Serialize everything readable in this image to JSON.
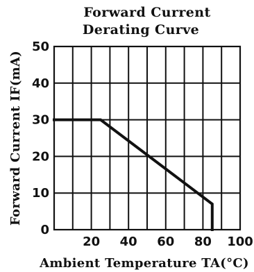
{
  "chart_data": {
    "type": "line",
    "title_line1": "Forward Current",
    "title_line2": "Derating Curve",
    "xlabel": "Ambient Temperature TA(°C)",
    "ylabel": "Forward Current IF(mA)",
    "xlim": [
      0,
      100
    ],
    "ylim": [
      0,
      50
    ],
    "xticks": [
      20,
      40,
      60,
      80,
      100
    ],
    "yticks": [
      0,
      10,
      20,
      30,
      40,
      50
    ],
    "grid": true,
    "series": [
      {
        "x": [
          0,
          25,
          85,
          85
        ],
        "y": [
          30,
          30,
          7,
          0
        ]
      }
    ]
  }
}
